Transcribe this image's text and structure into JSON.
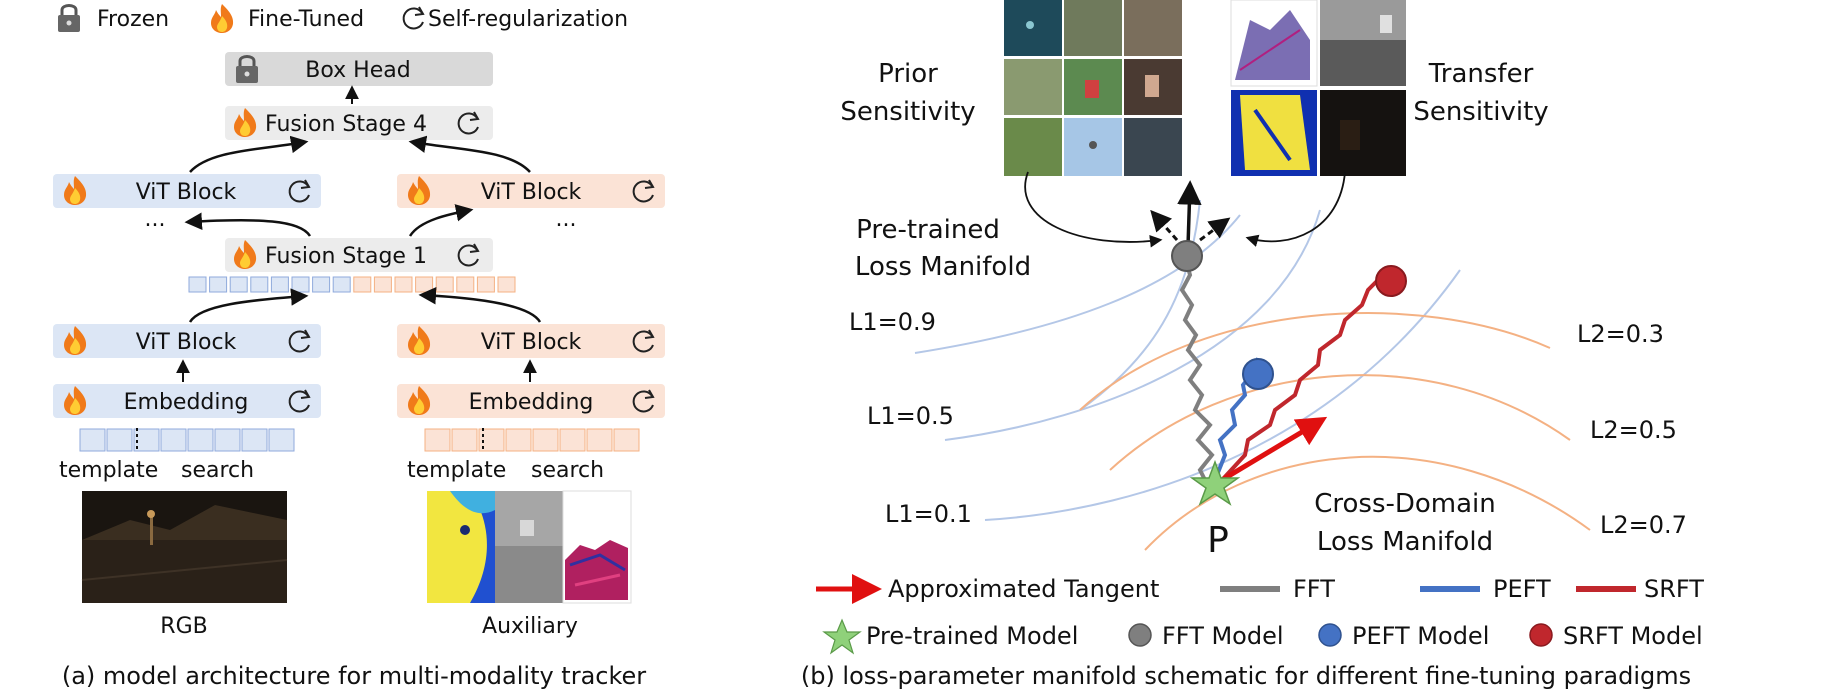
{
  "legend_top": {
    "frozen": "Frozen",
    "fine_tuned": "Fine-Tuned",
    "self_reg": "Self-regularization"
  },
  "arch": {
    "box_head": "Box Head",
    "fusion_stage_4": "Fusion Stage 4",
    "fusion_stage_1": "Fusion Stage 1",
    "vit_block": "ViT Block",
    "embedding": "Embedding",
    "dots": "...",
    "template": "template",
    "search": "search",
    "rgb": "RGB",
    "auxiliary": "Auxiliary",
    "caption": "(a) model architecture for multi-modality tracker"
  },
  "manifold": {
    "prior_line1": "Prior",
    "prior_line2": "Sensitivity",
    "transfer_line1": "Transfer",
    "transfer_line2": "Sensitivity",
    "pretrained_line1": "Pre-trained",
    "pretrained_line2": "Loss Manifold",
    "cross_line1": "Cross-Domain",
    "cross_line2": "Loss Manifold",
    "l1_09": "L1=0.9",
    "l1_05": "L1=0.5",
    "l1_01": "L1=0.1",
    "l2_03": "L2=0.3",
    "l2_05": "L2=0.5",
    "l2_07": "L2=0.7",
    "p_label": "P",
    "caption": "(b) loss-parameter manifold schematic for different fine-tuning paradigms"
  },
  "legend_bottom": {
    "approx_tangent": "Approximated Tangent",
    "fft": "FFT",
    "peft": "PEFT",
    "srft": "SRFT",
    "pretrained_model": "Pre-trained  Model",
    "fft_model": "FFT Model",
    "peft_model": "PEFT Model",
    "srft_model": "SRFT Model"
  },
  "colors": {
    "rgb_block": "#dce6f5",
    "aux_block": "#fbe3d6",
    "frozen_block": "#d9d9d9",
    "fft": "#7f7f7f",
    "peft": "#4472c4",
    "srft": "#c0272d",
    "tangent": "#e01010",
    "star": "#8fd17a",
    "l1_curve": "#b4c7e7",
    "l2_curve": "#f4b183"
  },
  "icons": [
    "lock-icon",
    "flame-icon",
    "refresh-icon"
  ]
}
